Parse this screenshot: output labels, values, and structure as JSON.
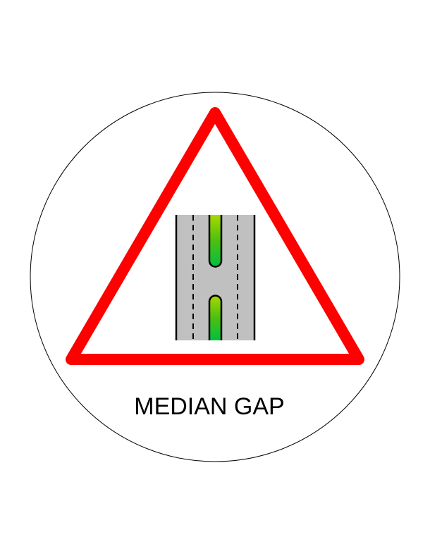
{
  "sign": {
    "caption": "MEDIAN GAP",
    "colors": {
      "border_circle": "#000000",
      "triangle_stroke": "#ff0000",
      "triangle_fill": "#ffffff",
      "road_surface": "#c0c0c0",
      "road_edge": "#000000",
      "lane_markings": "#000000",
      "median_fill_top": "#7fd400",
      "median_fill_bottom": "#00c040"
    },
    "icons": [
      "warning-triangle-icon",
      "road-median-gap-icon"
    ]
  }
}
